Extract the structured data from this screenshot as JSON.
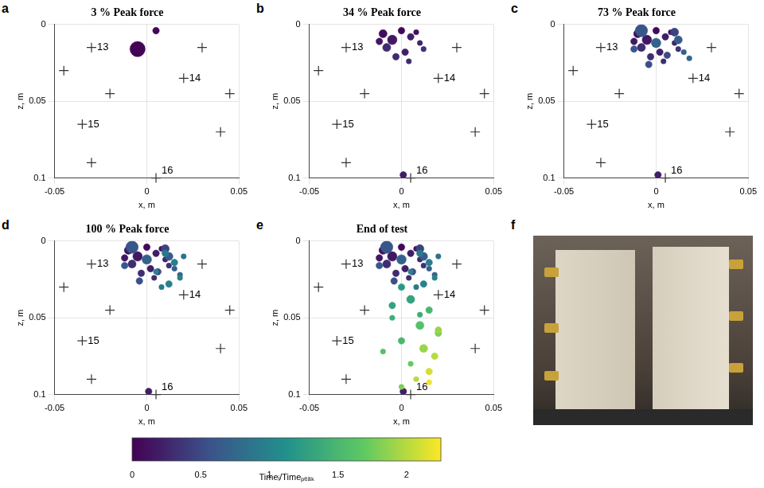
{
  "chart_data": [
    {
      "type": "bubble",
      "letter": "a",
      "title": "3 % Peak force",
      "x_label": "x, m",
      "y_label": "z, m",
      "xlim": [
        -0.05,
        0.05
      ],
      "xticks": [
        -0.05,
        0,
        0.05
      ],
      "ylim": [
        0,
        0.1
      ],
      "yticks": [
        0,
        0.05,
        0.1
      ],
      "grid": true,
      "events": {
        "x": [
          0.005,
          -0.005
        ],
        "z": [
          0.004,
          0.016
        ],
        "size": [
          3,
          9
        ],
        "t": [
          0.05,
          0.02
        ]
      }
    },
    {
      "type": "bubble",
      "letter": "b",
      "title": "34 % Peak force",
      "x_label": "x, m",
      "y_label": "z, m",
      "xlim": [
        -0.05,
        0.05
      ],
      "xticks": [
        -0.05,
        0,
        0.05
      ],
      "ylim": [
        0,
        0.1
      ],
      "yticks": [
        0,
        0.05,
        0.1
      ],
      "grid": true,
      "events": {
        "x": [
          0.0,
          -0.01,
          -0.005,
          0.005,
          0.01,
          -0.008,
          0.002,
          0.008,
          -0.003,
          0.012,
          0.004,
          -0.012,
          0.001
        ],
        "z": [
          0.004,
          0.006,
          0.01,
          0.008,
          0.012,
          0.015,
          0.018,
          0.005,
          0.021,
          0.016,
          0.024,
          0.011,
          0.098
        ],
        "size": [
          3,
          4,
          5,
          3,
          2,
          4,
          3,
          2,
          3,
          2,
          2,
          3,
          3
        ],
        "t": [
          0.05,
          0.1,
          0.15,
          0.2,
          0.25,
          0.3,
          0.2,
          0.1,
          0.3,
          0.35,
          0.3,
          0.15,
          0.2
        ]
      }
    },
    {
      "type": "bubble",
      "letter": "c",
      "title": "73 % Peak force",
      "x_label": "x, m",
      "y_label": "z, m",
      "xlim": [
        -0.05,
        0.05
      ],
      "xticks": [
        -0.05,
        0,
        0.05
      ],
      "ylim": [
        0,
        0.1
      ],
      "yticks": [
        0,
        0.05,
        0.1
      ],
      "grid": true,
      "events": {
        "x": [
          0.0,
          -0.01,
          -0.005,
          0.005,
          0.01,
          -0.008,
          0.002,
          0.008,
          -0.003,
          0.012,
          0.004,
          -0.012,
          0.001,
          -0.008,
          0.0,
          0.012,
          0.006,
          -0.004,
          0.015,
          0.01,
          0.018,
          -0.012
        ],
        "z": [
          0.004,
          0.006,
          0.01,
          0.008,
          0.012,
          0.015,
          0.018,
          0.005,
          0.021,
          0.016,
          0.024,
          0.011,
          0.098,
          0.004,
          0.012,
          0.01,
          0.02,
          0.026,
          0.018,
          0.005,
          0.022,
          0.016
        ],
        "size": [
          3,
          4,
          5,
          3,
          2,
          4,
          3,
          2,
          3,
          2,
          2,
          3,
          3,
          7,
          5,
          4,
          3,
          3,
          2,
          4,
          2,
          3
        ],
        "t": [
          0.05,
          0.1,
          0.15,
          0.2,
          0.25,
          0.3,
          0.2,
          0.1,
          0.3,
          0.35,
          0.3,
          0.15,
          0.2,
          0.6,
          0.7,
          0.65,
          0.5,
          0.55,
          0.7,
          0.45,
          0.72,
          0.6
        ]
      }
    },
    {
      "type": "bubble",
      "letter": "d",
      "title": "100 % Peak force",
      "x_label": "x, m",
      "y_label": "z, m",
      "xlim": [
        -0.05,
        0.05
      ],
      "xticks": [
        -0.05,
        0,
        0.05
      ],
      "ylim": [
        0,
        0.1
      ],
      "yticks": [
        0,
        0.05,
        0.1
      ],
      "grid": true,
      "events": {
        "x": [
          0.0,
          -0.01,
          -0.005,
          0.005,
          0.01,
          -0.008,
          0.002,
          0.008,
          -0.003,
          0.012,
          0.004,
          -0.012,
          0.001,
          -0.008,
          0.0,
          0.012,
          0.006,
          -0.004,
          0.015,
          0.01,
          0.018,
          -0.012,
          0.01,
          0.015,
          0.005,
          0.02,
          0.012,
          0.008,
          0.018
        ],
        "z": [
          0.004,
          0.006,
          0.01,
          0.008,
          0.012,
          0.015,
          0.018,
          0.005,
          0.021,
          0.016,
          0.024,
          0.011,
          0.098,
          0.004,
          0.012,
          0.01,
          0.02,
          0.026,
          0.018,
          0.005,
          0.022,
          0.016,
          0.008,
          0.014,
          0.02,
          0.01,
          0.028,
          0.03,
          0.024
        ],
        "size": [
          3,
          4,
          5,
          3,
          2,
          4,
          3,
          2,
          3,
          2,
          2,
          3,
          3,
          7,
          5,
          4,
          3,
          3,
          2,
          4,
          2,
          3,
          3,
          3,
          2,
          2,
          3,
          2,
          2
        ],
        "t": [
          0.05,
          0.1,
          0.15,
          0.2,
          0.25,
          0.3,
          0.2,
          0.1,
          0.3,
          0.35,
          0.3,
          0.15,
          0.2,
          0.6,
          0.7,
          0.65,
          0.5,
          0.55,
          0.7,
          0.45,
          0.72,
          0.6,
          0.9,
          0.95,
          1.0,
          0.85,
          0.98,
          0.92,
          1.0
        ]
      }
    },
    {
      "type": "bubble",
      "letter": "e",
      "title": "End of test",
      "x_label": "x, m",
      "y_label": "z, m",
      "xlim": [
        -0.05,
        0.05
      ],
      "xticks": [
        -0.05,
        0,
        0.05
      ],
      "ylim": [
        0,
        0.1
      ],
      "yticks": [
        0,
        0.05,
        0.1
      ],
      "grid": true,
      "events": {
        "x": [
          0.0,
          -0.01,
          -0.005,
          0.005,
          0.01,
          -0.008,
          0.002,
          0.008,
          -0.003,
          0.012,
          0.004,
          -0.012,
          0.001,
          -0.008,
          0.0,
          0.012,
          0.006,
          -0.004,
          0.015,
          0.01,
          0.018,
          -0.012,
          0.01,
          0.015,
          0.005,
          0.02,
          0.012,
          0.008,
          0.018,
          0.0,
          0.005,
          0.015,
          -0.005,
          0.01,
          0.02,
          0.0,
          0.012,
          0.018,
          0.005,
          -0.01,
          0.015,
          0.008,
          0.02,
          0.0,
          -0.005,
          0.01,
          0.015
        ],
        "z": [
          0.004,
          0.006,
          0.01,
          0.008,
          0.012,
          0.015,
          0.018,
          0.005,
          0.021,
          0.016,
          0.024,
          0.011,
          0.098,
          0.004,
          0.012,
          0.01,
          0.02,
          0.026,
          0.018,
          0.005,
          0.022,
          0.016,
          0.008,
          0.014,
          0.02,
          0.01,
          0.028,
          0.03,
          0.024,
          0.03,
          0.038,
          0.045,
          0.05,
          0.055,
          0.06,
          0.065,
          0.07,
          0.075,
          0.08,
          0.072,
          0.085,
          0.09,
          0.058,
          0.095,
          0.042,
          0.048,
          0.092
        ],
        "size": [
          3,
          4,
          5,
          3,
          2,
          4,
          3,
          2,
          3,
          2,
          2,
          3,
          3,
          7,
          5,
          4,
          3,
          3,
          2,
          4,
          2,
          3,
          3,
          3,
          2,
          2,
          3,
          2,
          2,
          3,
          4,
          3,
          2,
          4,
          3,
          3,
          4,
          3,
          2,
          2,
          3,
          2,
          3,
          2,
          3,
          2,
          2
        ],
        "t": [
          0.05,
          0.1,
          0.15,
          0.2,
          0.25,
          0.3,
          0.2,
          0.1,
          0.3,
          0.35,
          0.3,
          0.15,
          0.2,
          0.6,
          0.7,
          0.65,
          0.5,
          0.55,
          0.7,
          0.45,
          0.72,
          0.6,
          0.9,
          0.95,
          1.0,
          0.85,
          0.98,
          0.92,
          1.0,
          1.2,
          1.3,
          1.5,
          1.4,
          1.6,
          1.8,
          1.5,
          1.9,
          2.0,
          1.7,
          1.6,
          2.1,
          2.0,
          1.9,
          1.8,
          1.3,
          1.4,
          2.2
        ]
      }
    }
  ],
  "sensors": {
    "x": [
      -0.03,
      0.02,
      -0.035,
      0.005,
      -0.045,
      0.03,
      0.045,
      -0.02,
      0.04,
      -0.03
    ],
    "z": [
      0.015,
      0.035,
      0.065,
      0.1,
      0.03,
      0.015,
      0.045,
      0.045,
      0.07,
      0.09
    ],
    "labels": [
      "13",
      "14",
      "15",
      "16",
      null,
      null,
      null,
      null,
      null,
      null
    ]
  },
  "colorbar": {
    "label": "Timeᵢ/Timeₚₑₐₖ",
    "range": [
      0,
      2.25
    ],
    "ticks": [
      0,
      0.5,
      1,
      1.5,
      2
    ]
  },
  "photo_panel": {
    "letter": "f"
  }
}
